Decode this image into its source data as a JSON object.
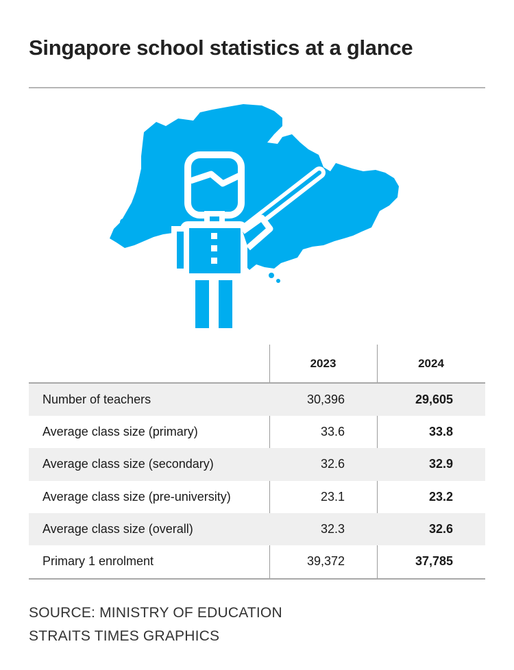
{
  "title": "Singapore school statistics at a glance",
  "colors": {
    "map": "#00adef",
    "icon_outline": "#ffffff",
    "row_shade": "#efefef",
    "rule": "#a8a8a8"
  },
  "illustration": {
    "icons": [
      "singapore-map-icon",
      "teacher-with-pointer-icon"
    ]
  },
  "table": {
    "columns": [
      "",
      "2023",
      "2024"
    ],
    "rows": [
      {
        "label": "Number of teachers",
        "v2023": "30,396",
        "v2024": "29,605"
      },
      {
        "label": "Average class size (primary)",
        "v2023": "33.6",
        "v2024": "33.8"
      },
      {
        "label": "Average class size (secondary)",
        "v2023": "32.6",
        "v2024": "32.9"
      },
      {
        "label": "Average class size (pre-university)",
        "v2023": "23.1",
        "v2024": "23.2"
      },
      {
        "label": "Average class size (overall)",
        "v2023": "32.3",
        "v2024": "32.6"
      },
      {
        "label": "Primary 1 enrolment",
        "v2023": "39,372",
        "v2024": "37,785"
      }
    ]
  },
  "footer": {
    "source": "SOURCE: MINISTRY OF EDUCATION",
    "credit": "STRAITS TIMES GRAPHICS"
  }
}
